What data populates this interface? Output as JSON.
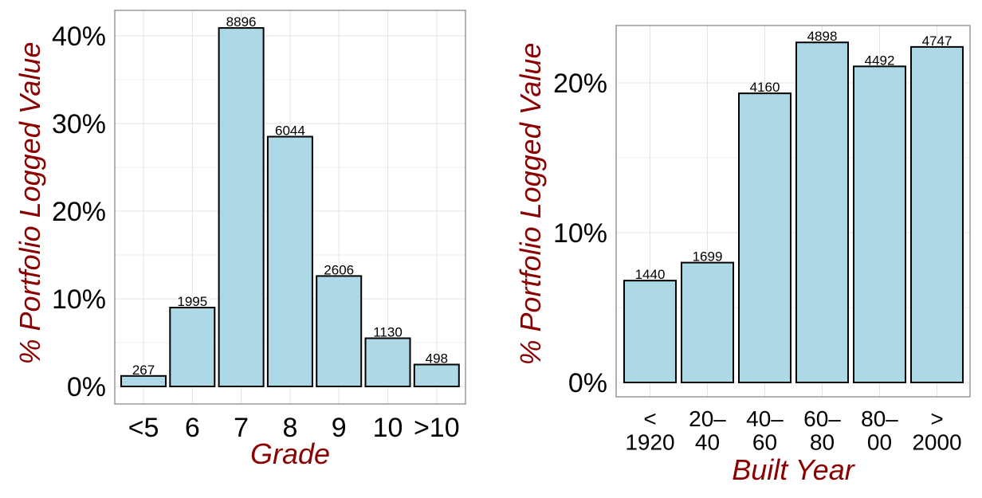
{
  "chart_data": [
    {
      "type": "bar",
      "xlabel": "Grade",
      "ylabel": "% Portfolio Logged Value",
      "categories": [
        "<5",
        "6",
        "7",
        "8",
        "9",
        "10",
        ">10"
      ],
      "values": [
        1.2,
        9.0,
        40.9,
        28.5,
        12.6,
        5.5,
        2.5
      ],
      "data_labels": [
        "267",
        "1995",
        "8896",
        "6044",
        "2606",
        "1130",
        "498"
      ],
      "yticks": [
        0,
        10,
        20,
        30,
        40
      ],
      "ytick_labels": [
        "0%",
        "10%",
        "20%",
        "30%",
        "40%"
      ],
      "ylim": [
        -2,
        42.9
      ],
      "grid": true,
      "colors": {
        "bar_fill": "#add8e6",
        "bar_stroke": "#000000",
        "axis_title": "#8b0000"
      }
    },
    {
      "type": "bar",
      "xlabel": "Built Year",
      "ylabel": "% Portfolio Logged Value",
      "categories": [
        "<\n1920",
        "20–\n40",
        "40–\n60",
        "60–\n80",
        "80–\n00",
        ">\n2000"
      ],
      "values": [
        6.8,
        8.0,
        19.3,
        22.7,
        21.1,
        22.4
      ],
      "data_labels": [
        "1440",
        "1699",
        "4160",
        "4898",
        "4492",
        "4747"
      ],
      "yticks": [
        0,
        10,
        20
      ],
      "ytick_labels": [
        "0%",
        "10%",
        "20%"
      ],
      "ylim": [
        -1,
        23.8
      ],
      "grid": true,
      "colors": {
        "bar_fill": "#add8e6",
        "bar_stroke": "#000000",
        "axis_title": "#8b0000"
      }
    }
  ]
}
